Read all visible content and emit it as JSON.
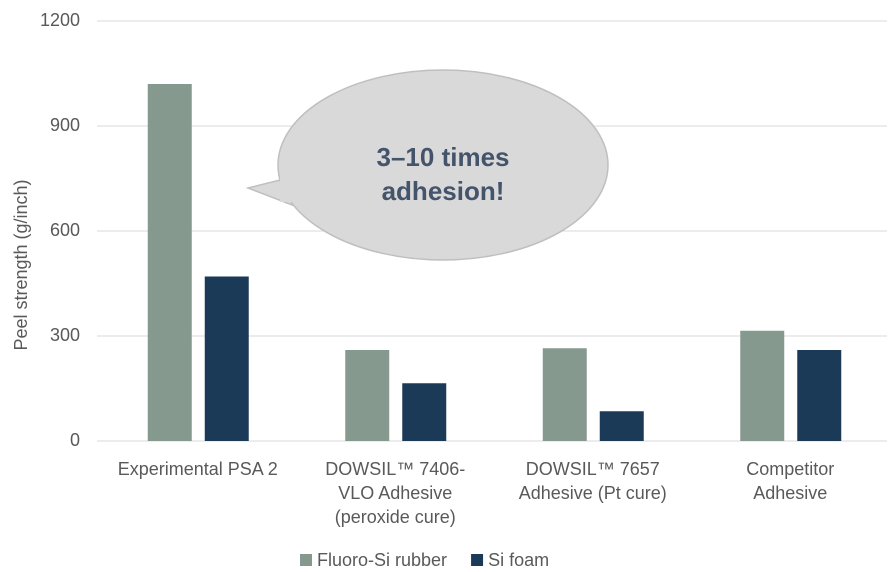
{
  "chart_data": {
    "type": "bar",
    "y_label": "Peel strength (g/inch)",
    "annotation": "3–10 times\nadhesion!",
    "categories": [
      "Experimental PSA 2",
      "DOWSIL™ 7406-\nVLO Adhesive\n(peroxide cure)",
      "DOWSIL™ 7657\nAdhesive (Pt cure)",
      "Competitor\nAdhesive"
    ],
    "series": [
      {
        "name": "Fluoro-Si rubber",
        "color": "#85998f",
        "values": [
          1020,
          260,
          265,
          315
        ]
      },
      {
        "name": "Si foam",
        "color": "#1b3a57",
        "values": [
          470,
          165,
          85,
          260
        ]
      }
    ],
    "ylim": [
      0,
      1200
    ],
    "yticks": [
      0,
      300,
      600,
      900,
      1200
    ],
    "grid": true,
    "legend": "bottom"
  }
}
